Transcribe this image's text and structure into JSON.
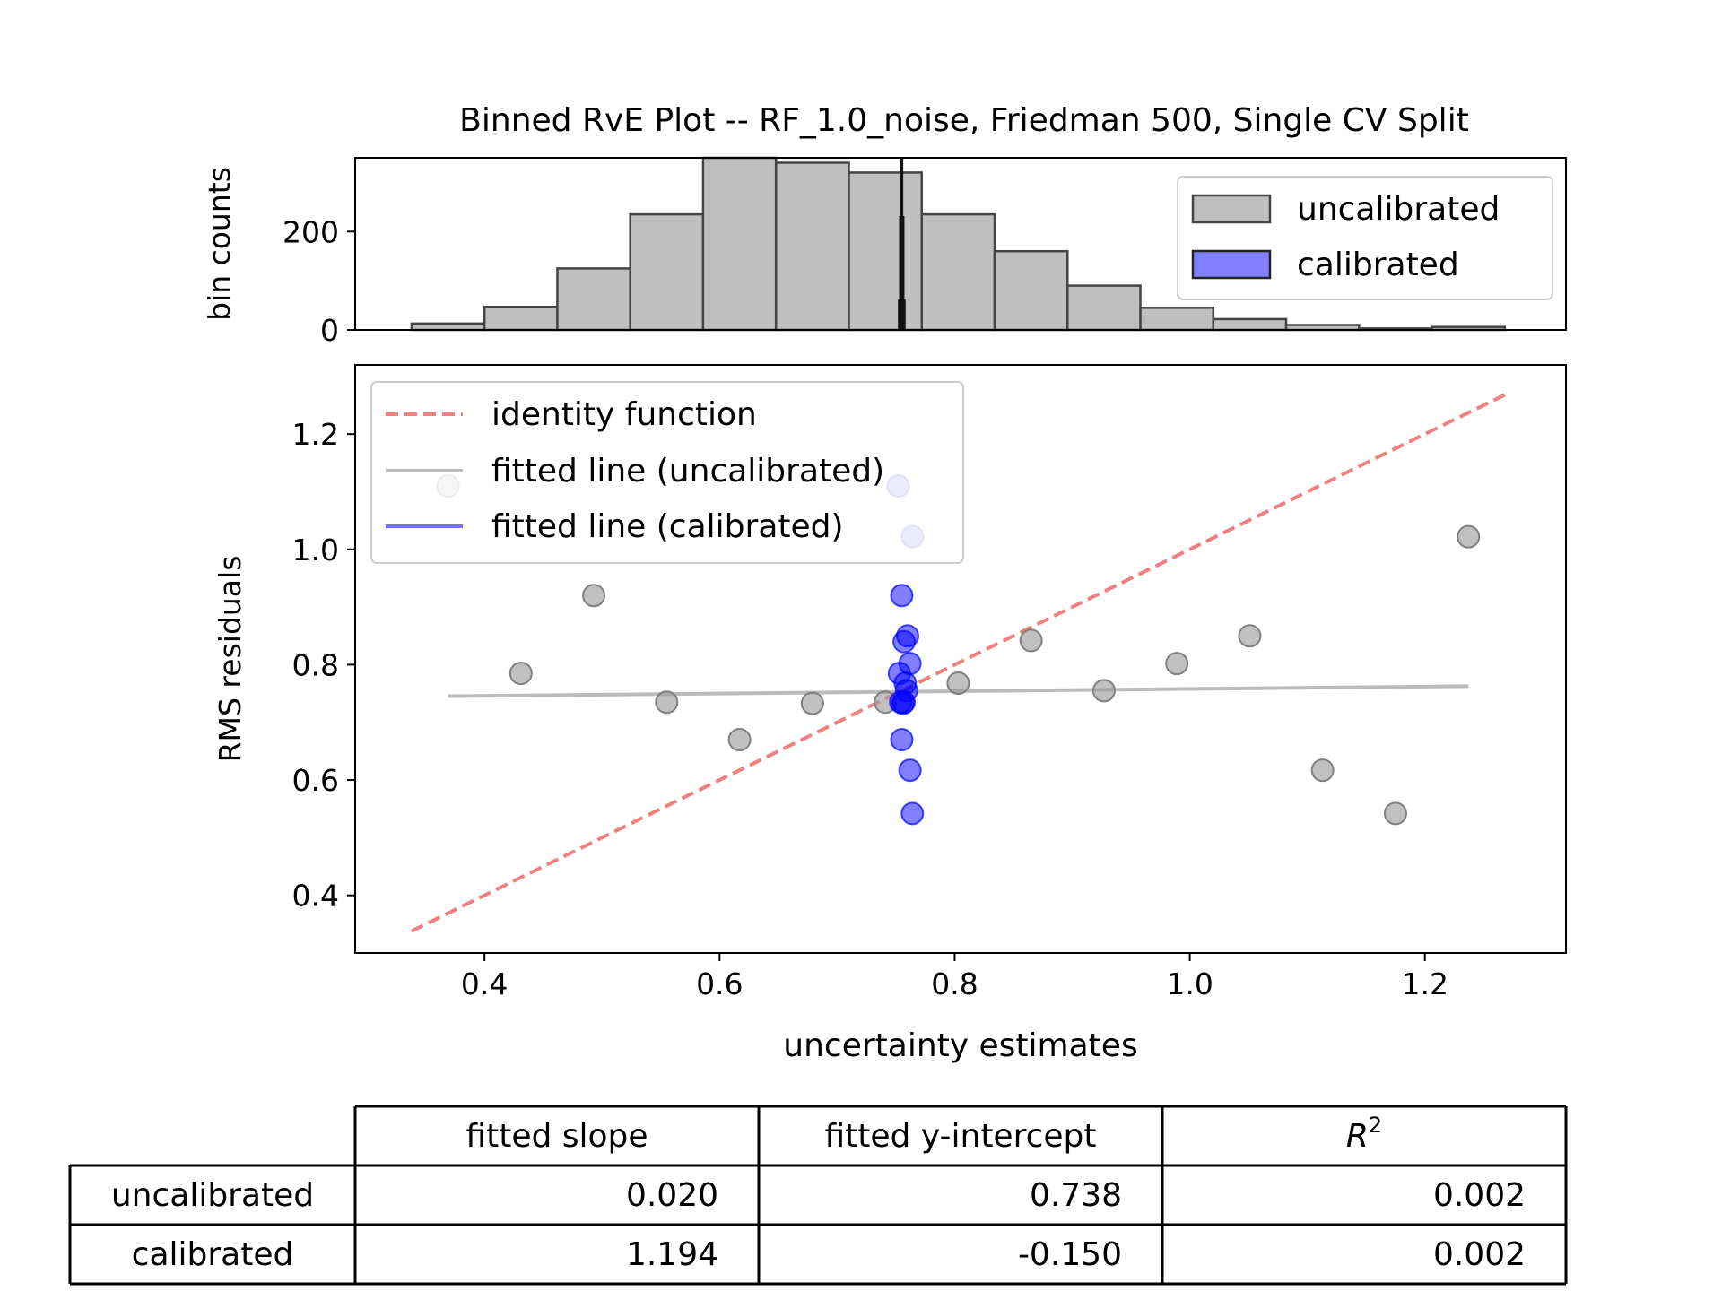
{
  "title": "Binned RvE Plot -- RF_1.0_noise, Friedman 500, Single CV Split",
  "colors": {
    "uncalibrated": "#999999",
    "calibrated": "#0000ff",
    "identity": "#f08080"
  },
  "chart_data": [
    {
      "type": "histogram",
      "ylabel": "bin counts",
      "ylim": [
        0,
        350
      ],
      "xlim": [
        0.29,
        1.32
      ],
      "yticks": [
        0,
        200
      ],
      "legend": {
        "placement": "top-right",
        "entries": [
          "uncalibrated",
          "calibrated"
        ]
      },
      "series": [
        {
          "name": "uncalibrated",
          "bin_edges": [
            0.338,
            0.4,
            0.462,
            0.524,
            0.586,
            0.648,
            0.71,
            0.772,
            0.834,
            0.896,
            0.958,
            1.02,
            1.082,
            1.144,
            1.206,
            1.268
          ],
          "counts": [
            13,
            47,
            125,
            235,
            350,
            340,
            320,
            235,
            160,
            90,
            45,
            22,
            10,
            3,
            6
          ]
        },
        {
          "name": "calibrated",
          "bin_edges": [
            0.7525,
            0.7535,
            0.7545,
            0.7555,
            0.7565,
            0.7575
          ],
          "counts": [
            60,
            230,
            350,
            230,
            60
          ]
        }
      ]
    },
    {
      "type": "scatter",
      "xlabel": "uncertainty estimates",
      "ylabel": "RMS residuals",
      "xlim": [
        0.29,
        1.32
      ],
      "ylim": [
        0.3,
        1.32
      ],
      "xticks": [
        0.4,
        0.6,
        0.8,
        1.0,
        1.2
      ],
      "yticks": [
        0.4,
        0.6,
        0.8,
        1.0,
        1.2
      ],
      "legend": {
        "placement": "top-left",
        "entries": [
          "identity function",
          "fitted line (uncalibrated)",
          "fitted line (calibrated)"
        ]
      },
      "identity_line": {
        "x": [
          0.338,
          1.268
        ],
        "y": [
          0.338,
          1.268
        ]
      },
      "series": [
        {
          "name": "uncalibrated",
          "x": [
            0.369,
            0.431,
            0.493,
            0.555,
            0.617,
            0.679,
            0.741,
            0.803,
            0.865,
            0.927,
            0.989,
            1.051,
            1.113,
            1.175,
            1.237
          ],
          "y": [
            1.11,
            0.785,
            0.92,
            0.735,
            0.67,
            0.733,
            0.735,
            0.768,
            0.842,
            0.755,
            0.802,
            0.85,
            0.617,
            0.542,
            1.022
          ],
          "fit": {
            "x": [
              0.369,
              1.237
            ],
            "y": [
              0.7454,
              0.7627
            ]
          }
        },
        {
          "name": "calibrated",
          "x": [
            0.752,
            0.764,
            0.755,
            0.753,
            0.757,
            0.76,
            0.762,
            0.758,
            0.754,
            0.756,
            0.759,
            0.755,
            0.757,
            0.762,
            0.764
          ],
          "y": [
            1.11,
            1.022,
            0.92,
            0.785,
            0.84,
            0.85,
            0.802,
            0.768,
            0.735,
            0.733,
            0.755,
            0.67,
            0.735,
            0.617,
            0.542
          ],
          "fit": {
            "x": [
              0.752,
              0.764
            ],
            "y": [
              0.748,
              0.762
            ]
          }
        }
      ]
    },
    {
      "type": "table",
      "columns": [
        "fitted slope",
        "fitted y-intercept",
        "R"
      ],
      "r2_superscript": "2",
      "rows": [
        {
          "label": "uncalibrated",
          "values": [
            "0.020",
            "0.738",
            "0.002"
          ]
        },
        {
          "label": "calibrated",
          "values": [
            "1.194",
            "-0.150",
            "0.002"
          ]
        }
      ]
    }
  ]
}
